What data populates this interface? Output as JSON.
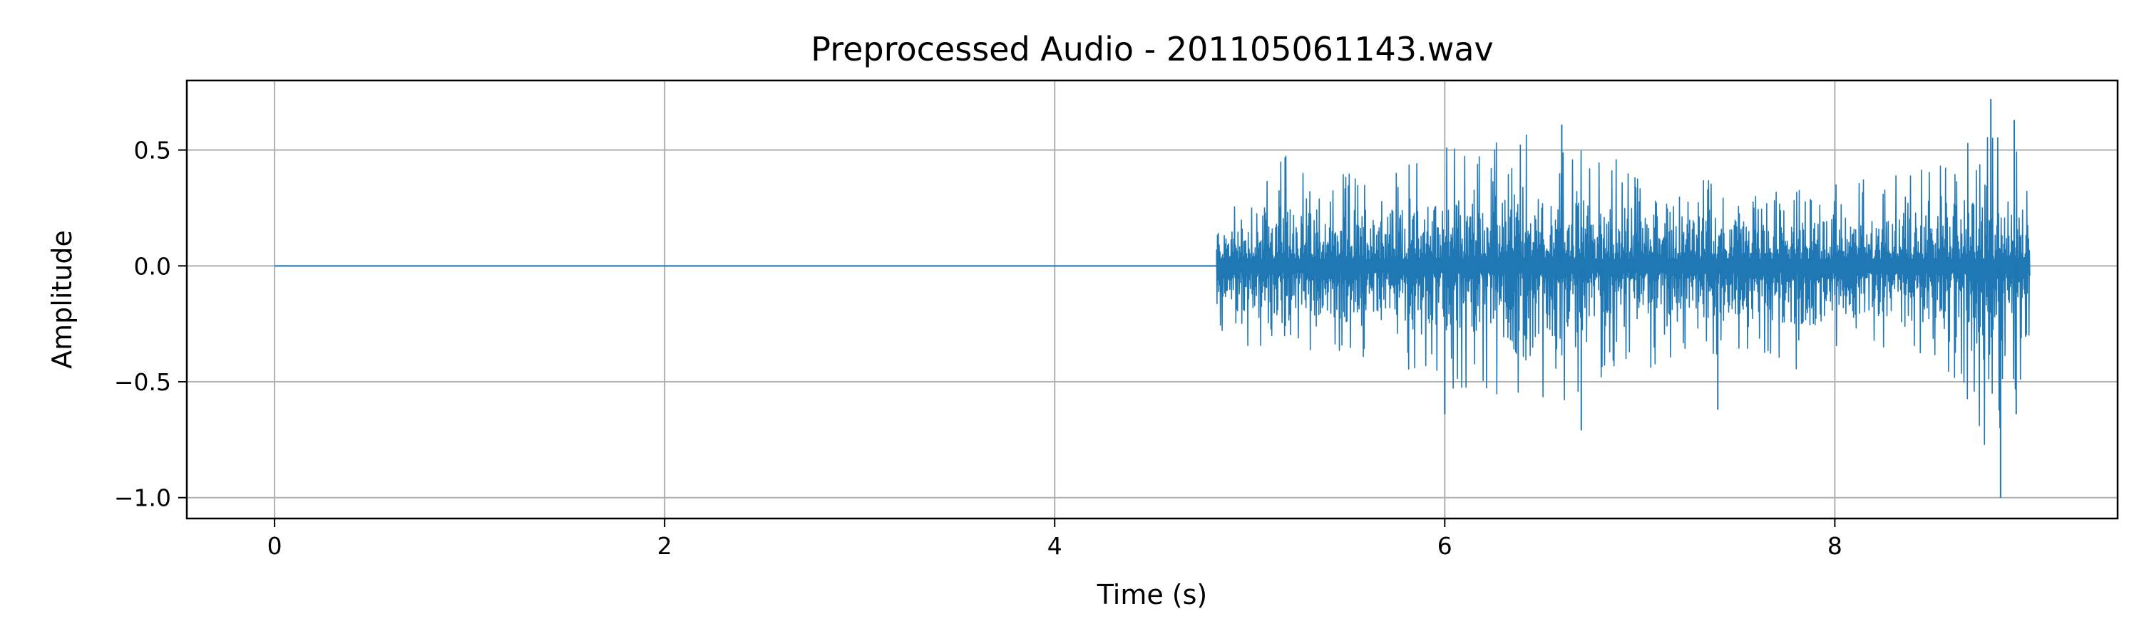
{
  "chart_data": {
    "type": "line",
    "title": "Preprocessed Audio - 201105061143.wav",
    "xlabel": "Time (s)",
    "ylabel": "Amplitude",
    "xlim": [
      -0.45,
      9.45
    ],
    "ylim": [
      -1.09,
      0.8
    ],
    "xticks": [
      0,
      2,
      4,
      6,
      8
    ],
    "xtick_labels": [
      "0",
      "2",
      "4",
      "6",
      "8"
    ],
    "yticks": [
      0.5,
      0.0,
      -0.5,
      -1.0
    ],
    "ytick_labels": [
      "0.5",
      "0.0",
      "−0.5",
      "−1.0"
    ],
    "grid": true,
    "legend": "none",
    "series": [
      {
        "color": "#1f77b4",
        "silent_range": [
          0,
          4.83
        ],
        "signal_range": [
          4.83,
          9.0
        ],
        "envelope_x": [
          4.83,
          5.0,
          5.2,
          5.4,
          5.6,
          5.8,
          6.0,
          6.2,
          6.4,
          6.6,
          6.8,
          7.0,
          7.2,
          7.4,
          7.6,
          7.8,
          8.0,
          8.2,
          8.4,
          8.6,
          8.8,
          9.0
        ],
        "envelope_max": [
          0.22,
          0.38,
          0.52,
          0.4,
          0.45,
          0.47,
          0.56,
          0.58,
          0.6,
          0.57,
          0.52,
          0.47,
          0.4,
          0.42,
          0.35,
          0.36,
          0.4,
          0.43,
          0.45,
          0.5,
          0.7,
          0.45
        ],
        "envelope_min": [
          -0.32,
          -0.38,
          -0.45,
          -0.42,
          -0.43,
          -0.46,
          -0.58,
          -0.62,
          -0.57,
          -0.65,
          -0.52,
          -0.5,
          -0.4,
          -0.42,
          -0.38,
          -0.5,
          -0.45,
          -0.42,
          -0.45,
          -0.48,
          -1.0,
          -0.45
        ],
        "peaks": [
          {
            "x": 6.0,
            "y": -0.64
          },
          {
            "x": 6.6,
            "y": 0.61
          },
          {
            "x": 6.7,
            "y": -0.71
          },
          {
            "x": 7.4,
            "y": -0.62
          },
          {
            "x": 8.8,
            "y": 0.72
          },
          {
            "x": 8.85,
            "y": -1.0
          },
          {
            "x": 8.92,
            "y": 0.63
          },
          {
            "x": 8.93,
            "y": -0.64
          }
        ]
      }
    ]
  }
}
